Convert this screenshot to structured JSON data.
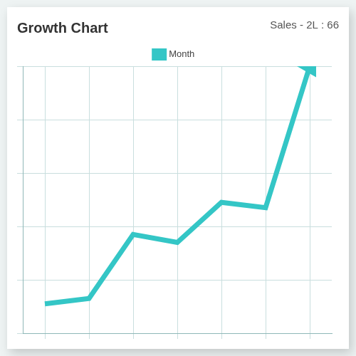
{
  "chart_data": {
    "type": "line",
    "title": "Growth Chart",
    "annotation": "Sales - 2L : 66",
    "categories": [
      null,
      null,
      null,
      null,
      null,
      null,
      null
    ],
    "series": [
      {
        "name": "Month",
        "color": "#34c6c6",
        "values": [
          11,
          13,
          37,
          34,
          49,
          47,
          100
        ],
        "marker": "arrow"
      }
    ],
    "ylim": [
      0,
      100
    ],
    "yticks": [
      0,
      20,
      40,
      60,
      80,
      100
    ],
    "grid": true,
    "legend": "top",
    "tick_labels": false
  }
}
